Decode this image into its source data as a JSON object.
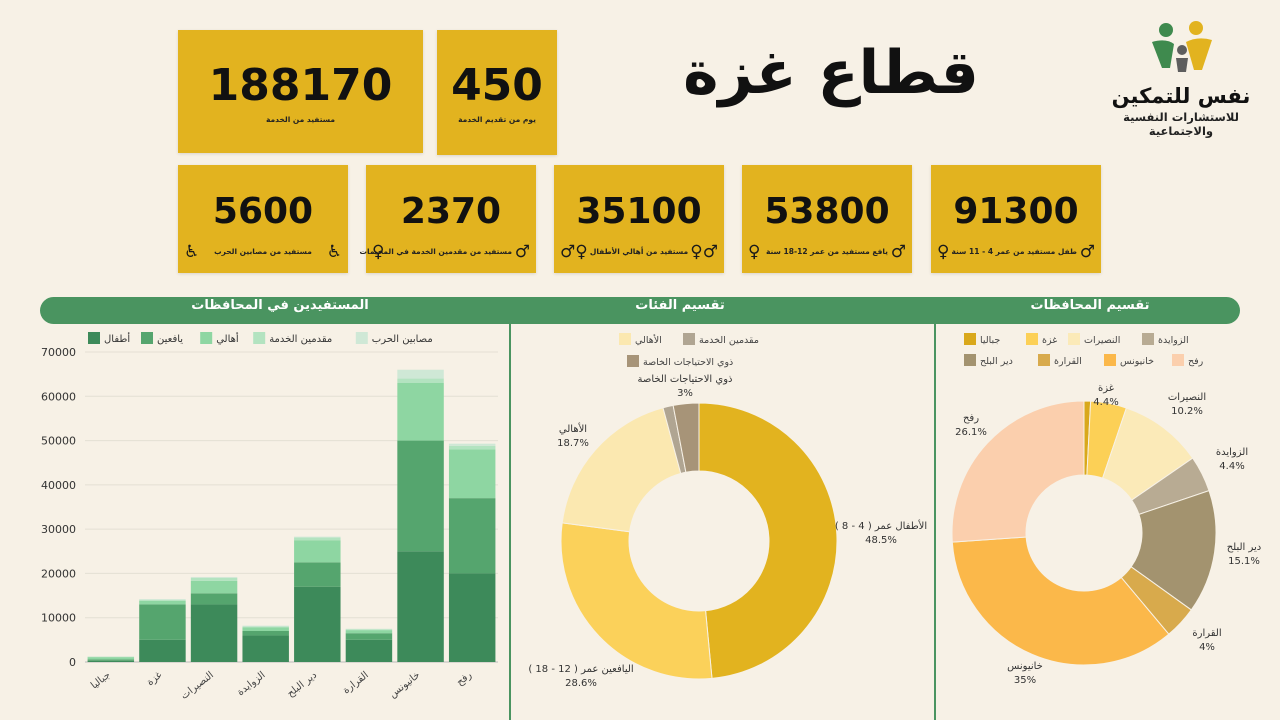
{
  "title": "قطاع غزة",
  "logo": {
    "name": "نفس للتمكين",
    "subtitle": "للاستشارات النفسية والاجتماعية"
  },
  "top_cards": [
    {
      "value": "188170",
      "label": "مستفيد من الخدمة"
    },
    {
      "value": "450",
      "label": "يوم من تقديم الخدمة"
    }
  ],
  "stat_cards": [
    {
      "value": "5600",
      "label": "مستفيد من مصابين الحرب",
      "icon": "wheelchair-icon"
    },
    {
      "value": "2370",
      "label": "مستفيد من مقدمين الخدمة في المخيمات",
      "icon": "person-icon"
    },
    {
      "value": "35100",
      "label": "مستفيد من أهالي الأطفال",
      "icon": "family-icon"
    },
    {
      "value": "53800",
      "label": "يافع مستفيد من عمر 12-18 سنة",
      "icon": "teen-icon"
    },
    {
      "value": "91300",
      "label": "طفل مستفيد من عمر 4 - 11 سنة",
      "icon": "child-icon"
    }
  ],
  "sections": {
    "bar": "المستفيدين في المحافظات",
    "categories_pie": "تقسيم الفئات",
    "governorates_pie": "تقسيم المحافظات"
  },
  "colors": {
    "gold": "#e2b31f",
    "green": "#4a9460",
    "background": "#f7f1e6"
  },
  "chart_data": [
    {
      "type": "bar",
      "stacked": true,
      "title": "المستفيدين في المحافظات",
      "categories": [
        "جباليا",
        "غزة",
        "النصيرات",
        "الزوايدة",
        "دير البلح",
        "القرارة",
        "خانيونس",
        "رفح"
      ],
      "series": [
        {
          "name": "أطفال",
          "color": "#3d8a5a",
          "values": [
            300,
            5000,
            13000,
            6000,
            17000,
            5000,
            25000,
            20000
          ]
        },
        {
          "name": "يافعين",
          "color": "#55a56e",
          "values": [
            300,
            8000,
            2500,
            1000,
            5500,
            1500,
            25000,
            17000
          ]
        },
        {
          "name": "أهالي",
          "color": "#8ed6a2",
          "values": [
            500,
            800,
            2800,
            800,
            5000,
            700,
            13000,
            11000
          ]
        },
        {
          "name": "مقدمين الخدمة",
          "color": "#b3e3c0",
          "values": [
            100,
            200,
            700,
            200,
            600,
            200,
            1000,
            800
          ]
        },
        {
          "name": "مصابين الحرب",
          "color": "#cfe8d6",
          "values": [
            50,
            200,
            200,
            200,
            200,
            100,
            2000,
            500
          ]
        }
      ],
      "ylim": [
        0,
        70000
      ],
      "yticks": [
        0,
        10000,
        20000,
        30000,
        40000,
        50000,
        60000,
        70000
      ],
      "grid": true,
      "legend": "top"
    },
    {
      "type": "pie",
      "donut": true,
      "title": "تقسيم الفئات",
      "slices": [
        {
          "label": "الأطفال عمر ( 4 - 8 )",
          "value": 48.5,
          "text": "48.5%",
          "color": "#e2b31f"
        },
        {
          "label": "اليافعين عمر ( 12 - 18 )",
          "value": 28.6,
          "text": "28.6%",
          "color": "#fbd15a"
        },
        {
          "label": "الأهالي",
          "value": 18.7,
          "text": "18.7%",
          "color": "#fbe8b0"
        },
        {
          "label": "مقدمين الخدمة",
          "value": 1.2,
          "text": "",
          "color": "#b0a592"
        },
        {
          "label": "ذوي الاحتياجات الخاصة",
          "value": 3,
          "text": "3%",
          "color": "#a79478"
        }
      ],
      "legend": [
        "الأهالي",
        "مقدمين الخدمة",
        "ذوي الاحتياجات الخاصة"
      ]
    },
    {
      "type": "pie",
      "donut": true,
      "title": "تقسيم المحافظات",
      "slices": [
        {
          "label": "جباليا",
          "value": 0.8,
          "text": "",
          "color": "#d9a81b"
        },
        {
          "label": "غزة",
          "value": 4.4,
          "text": "4.4%",
          "color": "#fcd056"
        },
        {
          "label": "النصيرات",
          "value": 10.2,
          "text": "10.2%",
          "color": "#fbeab8"
        },
        {
          "label": "الزوايدة",
          "value": 4.4,
          "text": "4.4%",
          "color": "#b8ab93"
        },
        {
          "label": "دير البلح",
          "value": 15.1,
          "text": "15.1%",
          "color": "#a3936f"
        },
        {
          "label": "القرارة",
          "value": 4,
          "text": "4%",
          "color": "#d8aa4c"
        },
        {
          "label": "خانيونس",
          "value": 35,
          "text": "35%",
          "color": "#fbb84a"
        },
        {
          "label": "رفح",
          "value": 26.1,
          "text": "26.1%",
          "color": "#fbcfad"
        }
      ],
      "legend": [
        "جباليا",
        "غزة",
        "النصيرات",
        "الزوايدة",
        "دير البلح",
        "القرارة",
        "خانيونس",
        "رفح"
      ]
    }
  ]
}
